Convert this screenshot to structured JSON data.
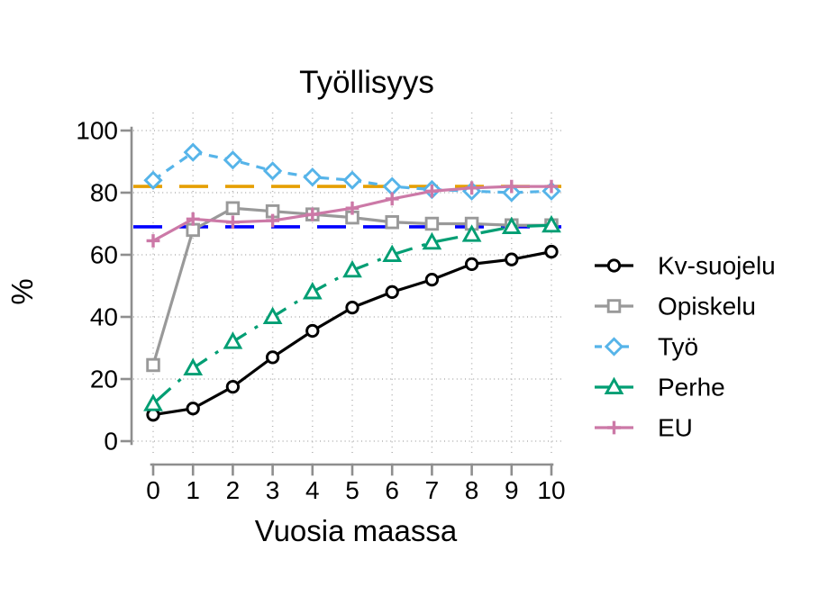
{
  "chart_data": {
    "type": "line",
    "title": "Työllisyys",
    "xlabel": "Vuosia maassa",
    "ylabel": "%",
    "xlim": [
      0,
      10
    ],
    "ylim": [
      0,
      100
    ],
    "xticks": [
      0,
      1,
      2,
      3,
      4,
      5,
      6,
      7,
      8,
      9,
      10
    ],
    "yticks": [
      0,
      20,
      40,
      60,
      80,
      100
    ],
    "grid": "dotted",
    "legend_position": "right",
    "x": [
      0,
      1,
      2,
      3,
      4,
      5,
      6,
      7,
      8,
      9,
      10
    ],
    "series": [
      {
        "name": "Kv-suojelu",
        "color": "#000000",
        "marker": "circle",
        "line_style": "solid",
        "values": [
          8.5,
          10.5,
          17.5,
          27,
          35.5,
          43,
          48,
          52,
          57,
          58.5,
          61
        ]
      },
      {
        "name": "Opiskelu",
        "color": "#999999",
        "marker": "square",
        "line_style": "solid",
        "values": [
          24.5,
          68,
          75,
          74,
          73,
          72,
          70.5,
          70,
          70,
          69.5,
          69.5
        ]
      },
      {
        "name": "Työ",
        "color": "#56B4E9",
        "marker": "diamond",
        "line_style": "dashed",
        "values": [
          84,
          93,
          90.5,
          87,
          85,
          84,
          82,
          81,
          80.5,
          80,
          80.5
        ]
      },
      {
        "name": "Perhe",
        "color": "#009E73",
        "marker": "triangle",
        "line_style": "dotdash",
        "values": [
          12,
          23.5,
          32,
          40,
          48,
          55,
          60,
          64,
          66.5,
          69,
          69.5
        ]
      },
      {
        "name": "EU",
        "color": "#CC79A7",
        "marker": "plus",
        "line_style": "solid",
        "values": [
          64.5,
          71.5,
          70.5,
          71,
          73,
          75,
          78,
          80.5,
          81.5,
          82,
          82
        ]
      }
    ],
    "reference_lines": [
      {
        "y": 82,
        "color": "#E69F00",
        "style": "longdash"
      },
      {
        "y": 69,
        "color": "#0000FF",
        "style": "longdash"
      }
    ],
    "style": {
      "axis_color": "#8e8e8e",
      "grid_color": "#b3b3b3",
      "text_color": "#000000",
      "background": "#ffffff"
    }
  }
}
